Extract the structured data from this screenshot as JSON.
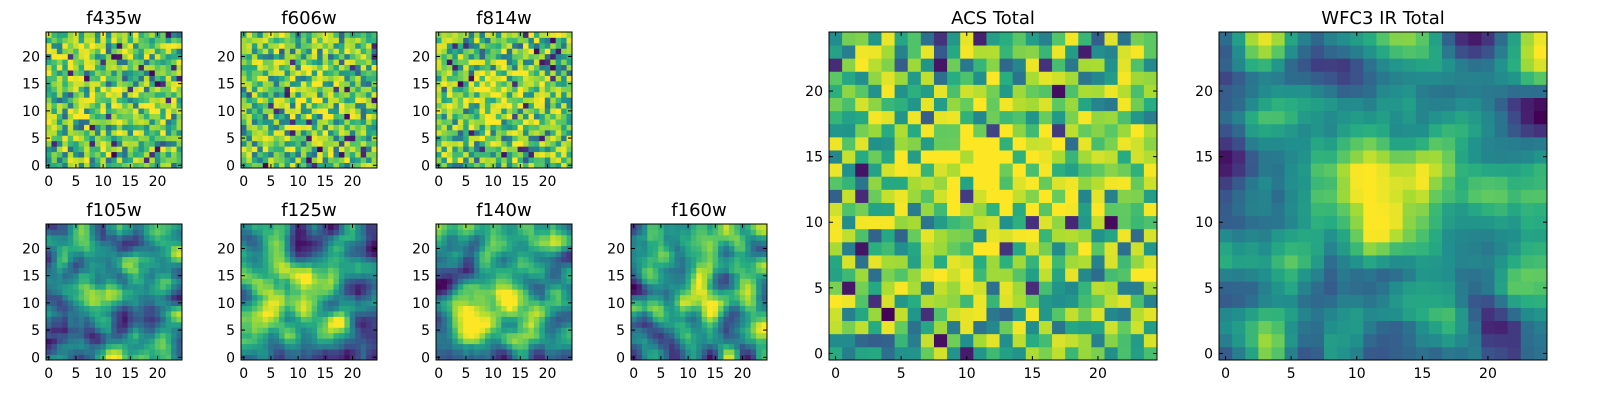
{
  "chart_data": [
    {
      "type": "heatmap",
      "title": "f435w",
      "grid_size": 25,
      "xlim": [
        -0.5,
        24.5
      ],
      "ylim": [
        -0.5,
        24.5
      ],
      "xticks": [
        0,
        5,
        10,
        15,
        20
      ],
      "yticks": [
        0,
        5,
        10,
        15,
        20
      ],
      "colormap": "viridis",
      "style": "noise",
      "seed": 11,
      "blob_center": [
        12,
        13
      ],
      "blob_sigma": 5,
      "blob_strength": 0.05,
      "value_range": [
        0,
        1
      ]
    },
    {
      "type": "heatmap",
      "title": "f606w",
      "grid_size": 25,
      "xlim": [
        -0.5,
        24.5
      ],
      "ylim": [
        -0.5,
        24.5
      ],
      "xticks": [
        0,
        5,
        10,
        15,
        20
      ],
      "yticks": [
        0,
        5,
        10,
        15,
        20
      ],
      "colormap": "viridis",
      "style": "noise",
      "seed": 23,
      "blob_center": [
        12,
        13
      ],
      "blob_sigma": 4,
      "blob_strength": 0.12,
      "value_range": [
        0,
        1
      ]
    },
    {
      "type": "heatmap",
      "title": "f814w",
      "grid_size": 25,
      "xlim": [
        -0.5,
        24.5
      ],
      "ylim": [
        -0.5,
        24.5
      ],
      "xticks": [
        0,
        5,
        10,
        15,
        20
      ],
      "yticks": [
        0,
        5,
        10,
        15,
        20
      ],
      "colormap": "viridis",
      "style": "noise",
      "seed": 37,
      "blob_center": [
        12,
        13
      ],
      "blob_sigma": 4,
      "blob_strength": 0.15,
      "value_range": [
        0,
        1
      ]
    },
    {
      "type": "heatmap",
      "title": "f105w",
      "grid_size": 25,
      "xlim": [
        -0.5,
        24.5
      ],
      "ylim": [
        -0.5,
        24.5
      ],
      "xticks": [
        0,
        5,
        10,
        15,
        20
      ],
      "yticks": [
        0,
        5,
        10,
        15,
        20
      ],
      "colormap": "viridis",
      "style": "smooth",
      "seed": 41,
      "blob_center": [
        11,
        13
      ],
      "blob_sigma": 4,
      "blob_strength": 0.3,
      "value_range": [
        0,
        1
      ]
    },
    {
      "type": "heatmap",
      "title": "f125w",
      "grid_size": 25,
      "xlim": [
        -0.5,
        24.5
      ],
      "ylim": [
        -0.5,
        24.5
      ],
      "xticks": [
        0,
        5,
        10,
        15,
        20
      ],
      "yticks": [
        0,
        5,
        10,
        15,
        20
      ],
      "colormap": "viridis",
      "style": "smooth",
      "seed": 53,
      "blob_center": [
        11,
        11
      ],
      "blob_sigma": 4,
      "blob_strength": 0.3,
      "value_range": [
        0,
        1
      ]
    },
    {
      "type": "heatmap",
      "title": "f140w",
      "grid_size": 25,
      "xlim": [
        -0.5,
        24.5
      ],
      "ylim": [
        -0.5,
        24.5
      ],
      "xticks": [
        0,
        5,
        10,
        15,
        20
      ],
      "yticks": [
        0,
        5,
        10,
        15,
        20
      ],
      "colormap": "viridis",
      "style": "smooth",
      "seed": 67,
      "blob_center": [
        10,
        10
      ],
      "blob_sigma": 4,
      "blob_strength": 0.35,
      "value_range": [
        0,
        1
      ]
    },
    {
      "type": "heatmap",
      "title": "f160w",
      "grid_size": 25,
      "xlim": [
        -0.5,
        24.5
      ],
      "ylim": [
        -0.5,
        24.5
      ],
      "xticks": [
        0,
        5,
        10,
        15,
        20
      ],
      "yticks": [
        0,
        5,
        10,
        15,
        20
      ],
      "colormap": "viridis",
      "style": "smooth",
      "seed": 79,
      "blob_center": [
        12,
        12
      ],
      "blob_sigma": 3.5,
      "blob_strength": 0.4,
      "value_range": [
        0,
        1
      ]
    },
    {
      "type": "heatmap",
      "title": "ACS Total",
      "grid_size": 25,
      "xlim": [
        -0.5,
        24.5
      ],
      "ylim": [
        -0.5,
        24.5
      ],
      "xticks": [
        0,
        5,
        10,
        15,
        20
      ],
      "yticks": [
        0,
        5,
        10,
        15,
        20
      ],
      "colormap": "viridis",
      "style": "noise",
      "seed": 97,
      "blob_center": [
        12,
        14
      ],
      "blob_sigma": 3,
      "blob_strength": 0.25,
      "value_range": [
        0,
        1
      ]
    },
    {
      "type": "heatmap",
      "title": "WFC3 IR Total",
      "grid_size": 25,
      "xlim": [
        -0.5,
        24.5
      ],
      "ylim": [
        -0.5,
        24.5
      ],
      "xticks": [
        0,
        5,
        10,
        15,
        20
      ],
      "yticks": [
        0,
        5,
        10,
        15,
        20
      ],
      "colormap": "viridis",
      "style": "smooth",
      "seed": 113,
      "blob_center": [
        12,
        12
      ],
      "blob_sigma": 3.5,
      "blob_strength": 0.45,
      "value_range": [
        0,
        1
      ]
    }
  ]
}
